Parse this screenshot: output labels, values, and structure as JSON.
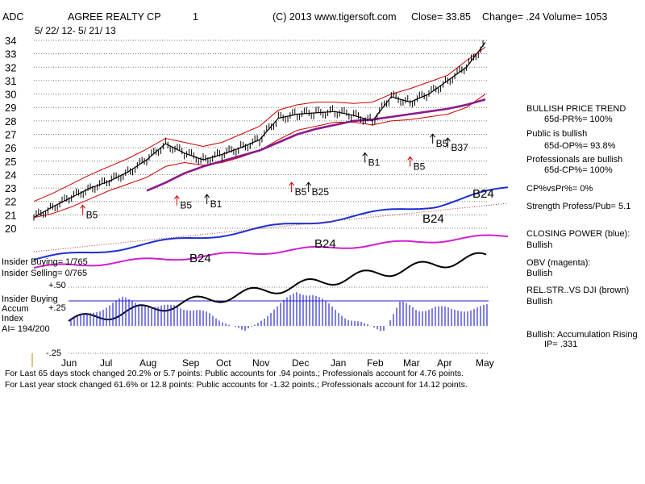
{
  "header": {
    "ticker": "ADC",
    "company": "AGREE REALTY CP",
    "page_no": "1",
    "copyright": "(C) 2013 www.tigersoft.com",
    "close": "Close=  33.85",
    "change": "Change= .24",
    "volume": "Volume= 1053",
    "date_range": "5/ 22/ 12- 5/ 21/ 13"
  },
  "right_panel": {
    "bullish_trend_title": "BULLISH PRICE TREND",
    "pr_pct": "65d-PR%= 100%",
    "public_title": "Public is bullish",
    "op_pct": "65d-OP%= 93.8%",
    "pros_title": "Professionals are bullish",
    "cp_pct": "65d-CP%= 100%",
    "cp_vs_pr": "CP%vsPr%=  0%",
    "strength": "Strength Profess/Pub= 5.1",
    "closing_power_label": "CLOSING POWER (blue):",
    "closing_power_value": "Bullish",
    "obv_label": "OBV (magenta):",
    "obv_value": "Bullish",
    "relstr_label": "REL.STR..VS DJI (brown)",
    "relstr_value": "Bullish",
    "accum_label": "Bullish: Accumulation Rising",
    "ip": "IP=  .331"
  },
  "left_labels": {
    "insider_buying": "Insider Buying= 1/765",
    "insider_selling": "Insider Selling= 0/765",
    "insider_buying2": "Insider Buying",
    "accum": "Accum",
    "index": "Index",
    "ai": "AI= 194/200",
    "plus50": "+.50",
    "plus25": "+.25",
    "minus25": "-.25"
  },
  "footer": {
    "line1": "For Last 65 days stock changed  20.2% or  5.7 points:  Public accounts for  .94 points.;  Professionals account for  4.76 points.",
    "line2": "For Last year stock changed  61.6% or  12.8 points:  Public accounts for -1.32 points.;  Professionals account for  14.12 points."
  },
  "chart_data": {
    "type": "line",
    "title": "AGREE REALTY CP (ADC) daily price with Tiger indicators",
    "price_axis_ticks": [
      20,
      21,
      22,
      23,
      24,
      25,
      26,
      27,
      28,
      29,
      30,
      31,
      32,
      33,
      34
    ],
    "ylim": [
      19.5,
      34.5
    ],
    "month_labels": [
      "Jun",
      "Jul",
      "Aug",
      "Sep",
      "Oct",
      "Nov",
      "Dec",
      "Jan",
      "Feb",
      "Mar",
      "Apr",
      "May"
    ],
    "x": [
      0,
      0.5,
      1,
      1.5,
      2,
      2.5,
      3,
      3.5,
      4,
      4.5,
      5,
      5.5,
      6,
      6.5,
      7,
      7.5,
      8,
      8.5,
      9,
      9.5,
      10,
      10.5,
      11,
      11.5,
      12
    ],
    "series": [
      {
        "name": "Close",
        "color": "#000000",
        "values": [
          20.8,
          21.6,
          22.3,
          23.0,
          23.5,
          24.2,
          25.1,
          26.3,
          25.6,
          25.1,
          25.5,
          26.0,
          26.6,
          28.2,
          28.5,
          28.6,
          28.7,
          28.4,
          28.0,
          29.8,
          29.4,
          30.0,
          31.0,
          32.0,
          33.85
        ]
      },
      {
        "name": "Upper band",
        "color": "#d00000",
        "values": [
          22.0,
          22.6,
          23.3,
          24.0,
          24.6,
          25.2,
          25.9,
          26.7,
          26.4,
          26.1,
          26.4,
          27.0,
          27.6,
          28.8,
          29.2,
          29.4,
          29.4,
          29.3,
          29.4,
          30.0,
          30.4,
          30.9,
          31.4,
          32.5,
          33.5
        ]
      },
      {
        "name": "Lower band",
        "color": "#d00000",
        "values": [
          20.8,
          21.1,
          21.6,
          22.2,
          22.8,
          23.3,
          23.8,
          24.6,
          24.9,
          24.7,
          24.9,
          25.3,
          25.8,
          26.6,
          27.3,
          27.6,
          27.9,
          27.9,
          27.7,
          28.0,
          28.1,
          28.3,
          28.5,
          29.0,
          30.0
        ]
      },
      {
        "name": "Moving average",
        "color": "#8b1a8b",
        "values": [
          null,
          null,
          null,
          null,
          null,
          null,
          22.8,
          23.4,
          24.1,
          24.6,
          25.0,
          25.4,
          25.8,
          26.4,
          27.0,
          27.4,
          27.7,
          28.0,
          28.1,
          28.3,
          28.5,
          28.7,
          28.9,
          29.2,
          29.6
        ]
      }
    ],
    "signals": [
      {
        "label": "B5",
        "x": 1.3,
        "y": 21.0,
        "color": "#d00000"
      },
      {
        "label": "B5",
        "x": 3.8,
        "y": 21.7,
        "color": "#d00000"
      },
      {
        "label": "B1",
        "x": 4.6,
        "y": 21.8,
        "color": "#000000"
      },
      {
        "label": "B5",
        "x": 6.85,
        "y": 22.7,
        "color": "#d00000"
      },
      {
        "label": "B25",
        "x": 7.3,
        "y": 22.7,
        "color": "#000000"
      },
      {
        "label": "B1",
        "x": 8.8,
        "y": 24.9,
        "color": "#000000"
      },
      {
        "label": "B5",
        "x": 10.0,
        "y": 24.6,
        "color": "#d00000"
      },
      {
        "label": "B5",
        "x": 10.6,
        "y": 26.3,
        "color": "#000000"
      },
      {
        "label": "B37",
        "x": 11.0,
        "y": 26.0,
        "color": "#000000"
      }
    ],
    "indicator_annotations": [
      "B24",
      "B24",
      "B24",
      "B24"
    ],
    "accumulation_index": {
      "ylim": [
        -0.3,
        0.55
      ],
      "levels": [
        "+.50",
        "+.25",
        "-.25"
      ],
      "values": [
        0.1,
        0.15,
        0.25,
        0.35,
        0.3,
        0.22,
        0.28,
        0.2,
        0.15,
        0.05,
        -0.1,
        0.1,
        0.25,
        0.45,
        0.4,
        0.25,
        0.1,
        0.0,
        -0.05,
        0.3,
        0.2,
        0.25,
        0.2,
        0.22,
        0.25
      ]
    }
  }
}
